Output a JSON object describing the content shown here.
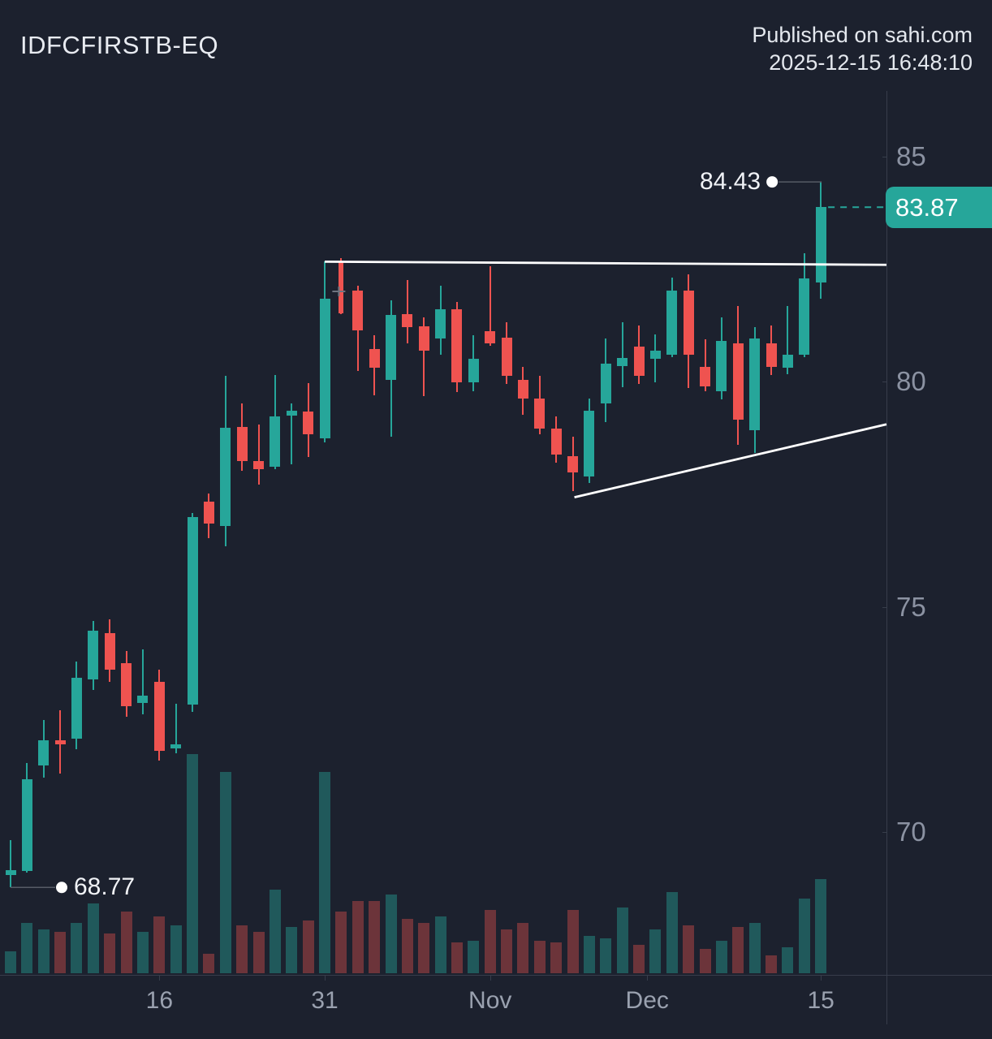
{
  "header": {
    "symbol": "IDFCFIRSTB-EQ",
    "published_line1": "Published on sahi.com",
    "published_line2": "2025-12-15 16:48:10"
  },
  "colors": {
    "background": "#1c212e",
    "bullish": "#26a69a",
    "bearish": "#ef5350",
    "trendline": "#ffffff",
    "axis_text": "#9aa1af",
    "price_tag_bg": "#26a69a"
  },
  "chart_data": {
    "type": "candlestick",
    "symbol": "IDFCFIRSTB-EQ",
    "volume_panel": true,
    "grid": false,
    "y_axis": {
      "side": "right",
      "ticks": [
        {
          "label": "85",
          "price": 85
        },
        {
          "label": "80",
          "price": 80
        },
        {
          "label": "75",
          "price": 75
        },
        {
          "label": "70",
          "price": 70
        }
      ]
    },
    "x_axis": {
      "ticks": [
        {
          "label": "16",
          "index": 9
        },
        {
          "label": "31",
          "index": 19
        },
        {
          "label": "Nov",
          "index": 29
        },
        {
          "label": "Dec",
          "index": 38.5
        },
        {
          "label": "15",
          "index": 49
        }
      ]
    },
    "candles": [
      {
        "o": 69.05,
        "h": 69.82,
        "l": 68.77,
        "c": 69.16,
        "v": 10
      },
      {
        "o": 69.14,
        "h": 71.53,
        "l": 69.1,
        "c": 71.17,
        "v": 23
      },
      {
        "o": 71.48,
        "h": 72.49,
        "l": 71.21,
        "c": 72.04,
        "v": 20
      },
      {
        "o": 72.04,
        "h": 72.7,
        "l": 71.3,
        "c": 71.95,
        "v": 19
      },
      {
        "o": 72.07,
        "h": 73.78,
        "l": 71.84,
        "c": 73.42,
        "v": 23
      },
      {
        "o": 73.39,
        "h": 74.68,
        "l": 73.15,
        "c": 74.47,
        "v": 32
      },
      {
        "o": 74.41,
        "h": 74.72,
        "l": 73.33,
        "c": 73.6,
        "v": 18
      },
      {
        "o": 73.75,
        "h": 74.02,
        "l": 72.56,
        "c": 72.79,
        "v": 28
      },
      {
        "o": 72.86,
        "h": 74.06,
        "l": 72.61,
        "c": 73.03,
        "v": 19
      },
      {
        "o": 73.33,
        "h": 73.6,
        "l": 71.59,
        "c": 71.8,
        "v": 26
      },
      {
        "o": 71.86,
        "h": 72.85,
        "l": 71.75,
        "c": 71.95,
        "v": 22
      },
      {
        "o": 72.83,
        "h": 77.08,
        "l": 72.67,
        "c": 76.99,
        "v": 100
      },
      {
        "o": 77.33,
        "h": 77.51,
        "l": 76.52,
        "c": 76.84,
        "v": 9
      },
      {
        "o": 76.79,
        "h": 80.12,
        "l": 76.34,
        "c": 78.97,
        "v": 92
      },
      {
        "o": 79.0,
        "h": 79.51,
        "l": 78.01,
        "c": 78.23,
        "v": 22
      },
      {
        "o": 78.23,
        "h": 79.04,
        "l": 77.71,
        "c": 78.05,
        "v": 19
      },
      {
        "o": 78.1,
        "h": 80.14,
        "l": 78.05,
        "c": 79.22,
        "v": 38
      },
      {
        "o": 79.24,
        "h": 79.51,
        "l": 78.16,
        "c": 79.36,
        "v": 21
      },
      {
        "o": 79.33,
        "h": 79.96,
        "l": 78.32,
        "c": 78.82,
        "v": 24
      },
      {
        "o": 78.73,
        "h": 82.66,
        "l": 78.64,
        "c": 81.83,
        "v": 92
      },
      {
        "o": 82.66,
        "h": 82.73,
        "l": 81.49,
        "c": 81.52,
        "v": 28,
        "thin": true
      },
      {
        "o": 82.01,
        "h": 82.12,
        "l": 80.23,
        "c": 81.13,
        "v": 33
      },
      {
        "o": 80.72,
        "h": 81.02,
        "l": 79.69,
        "c": 80.3,
        "v": 33
      },
      {
        "o": 80.03,
        "h": 81.8,
        "l": 78.77,
        "c": 81.47,
        "v": 36
      },
      {
        "o": 81.49,
        "h": 82.25,
        "l": 80.84,
        "c": 81.2,
        "v": 25
      },
      {
        "o": 81.22,
        "h": 81.43,
        "l": 79.67,
        "c": 80.68,
        "v": 23
      },
      {
        "o": 80.95,
        "h": 82.12,
        "l": 80.59,
        "c": 81.61,
        "v": 26
      },
      {
        "o": 81.61,
        "h": 81.76,
        "l": 79.76,
        "c": 79.99,
        "v": 14
      },
      {
        "o": 79.99,
        "h": 81.02,
        "l": 79.78,
        "c": 80.5,
        "v": 15
      },
      {
        "o": 81.11,
        "h": 82.55,
        "l": 80.8,
        "c": 80.84,
        "v": 29
      },
      {
        "o": 80.98,
        "h": 81.31,
        "l": 79.94,
        "c": 80.12,
        "v": 20
      },
      {
        "o": 80.03,
        "h": 80.32,
        "l": 79.27,
        "c": 79.63,
        "v": 23
      },
      {
        "o": 79.63,
        "h": 80.12,
        "l": 78.82,
        "c": 78.95,
        "v": 15
      },
      {
        "o": 78.95,
        "h": 79.22,
        "l": 78.19,
        "c": 78.37,
        "v": 14
      },
      {
        "o": 78.34,
        "h": 78.77,
        "l": 77.56,
        "c": 77.98,
        "v": 29
      },
      {
        "o": 77.89,
        "h": 79.63,
        "l": 77.74,
        "c": 79.36,
        "v": 17
      },
      {
        "o": 79.51,
        "h": 80.95,
        "l": 79.09,
        "c": 80.39,
        "v": 16
      },
      {
        "o": 80.35,
        "h": 81.31,
        "l": 79.87,
        "c": 80.53,
        "v": 30
      },
      {
        "o": 80.77,
        "h": 81.25,
        "l": 79.94,
        "c": 80.12,
        "v": 13
      },
      {
        "o": 80.5,
        "h": 81.04,
        "l": 79.99,
        "c": 80.68,
        "v": 20
      },
      {
        "o": 80.59,
        "h": 82.3,
        "l": 80.54,
        "c": 82.01,
        "v": 37
      },
      {
        "o": 82.01,
        "h": 82.37,
        "l": 79.85,
        "c": 80.59,
        "v": 22
      },
      {
        "o": 80.32,
        "h": 80.93,
        "l": 79.78,
        "c": 79.9,
        "v": 11
      },
      {
        "o": 79.78,
        "h": 81.43,
        "l": 79.6,
        "c": 80.9,
        "v": 15
      },
      {
        "o": 80.84,
        "h": 81.67,
        "l": 78.59,
        "c": 79.15,
        "v": 21
      },
      {
        "o": 78.91,
        "h": 81.2,
        "l": 78.41,
        "c": 80.95,
        "v": 23
      },
      {
        "o": 80.84,
        "h": 81.25,
        "l": 80.14,
        "c": 80.32,
        "v": 8
      },
      {
        "o": 80.3,
        "h": 81.67,
        "l": 80.17,
        "c": 80.59,
        "v": 12
      },
      {
        "o": 80.59,
        "h": 82.84,
        "l": 80.54,
        "c": 82.28,
        "v": 34
      },
      {
        "o": 82.19,
        "h": 84.43,
        "l": 81.83,
        "c": 83.87,
        "v": 43
      }
    ],
    "annotations": {
      "high_marker": {
        "label": "84.43",
        "price": 84.43,
        "candle_index": 49
      },
      "low_marker": {
        "label": "68.77",
        "price": 68.77,
        "candle_index": 0
      },
      "price_tag": {
        "label": "83.87",
        "price": 83.87,
        "color": "#26a69a"
      },
      "close_line": {
        "price": 83.87,
        "style": "dashed",
        "color": "#26a69a"
      },
      "resistance_line": {
        "price_start": 82.66,
        "price_end": 82.59,
        "start_candle_index": 19,
        "color": "#ffffff"
      },
      "support_line": {
        "price_start": 77.43,
        "price_end": 79.05,
        "start_candle_index": 34,
        "color": "#ffffff"
      },
      "cross_marker": {
        "price": 82.0,
        "candle_index": 20
      }
    }
  }
}
